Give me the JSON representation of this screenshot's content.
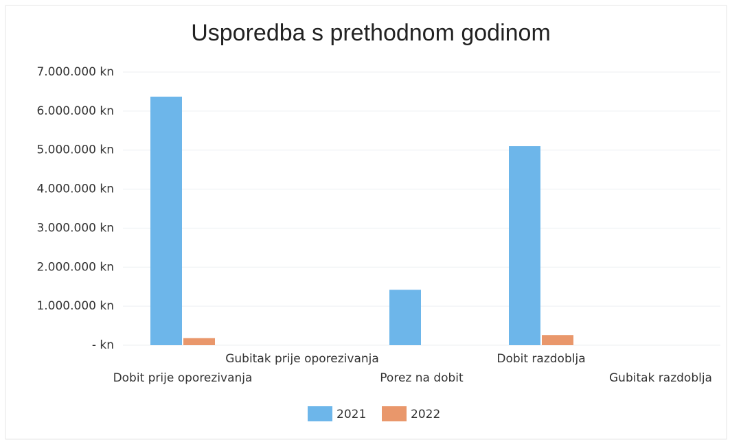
{
  "chart_data": {
    "type": "bar",
    "title": "Usporedba s prethodnom godinom",
    "categories": [
      "Dobit prije oporezivanja",
      "Gubitak prije oporezivanja",
      "Porez na dobit",
      "Dobit razdoblja",
      "Gubitak razdoblja"
    ],
    "series": [
      {
        "name": "2021",
        "color": "#6db6ea",
        "values": [
          6370000,
          0,
          1420000,
          5100000,
          0
        ]
      },
      {
        "name": "2022",
        "color": "#e9976b",
        "values": [
          180000,
          0,
          0,
          260000,
          0
        ]
      }
    ],
    "ylim": [
      0,
      7000000
    ],
    "yticks": [
      {
        "value": 0,
        "label": "- kn"
      },
      {
        "value": 1000000,
        "label": "1.000.000 kn"
      },
      {
        "value": 2000000,
        "label": "2.000.000 kn"
      },
      {
        "value": 3000000,
        "label": "3.000.000 kn"
      },
      {
        "value": 4000000,
        "label": "4.000.000 kn"
      },
      {
        "value": 5000000,
        "label": "5.000.000 kn"
      },
      {
        "value": 6000000,
        "label": "6.000.000 kn"
      },
      {
        "value": 7000000,
        "label": "7.000.000 kn"
      }
    ],
    "grid": true,
    "legend": "bottom"
  }
}
